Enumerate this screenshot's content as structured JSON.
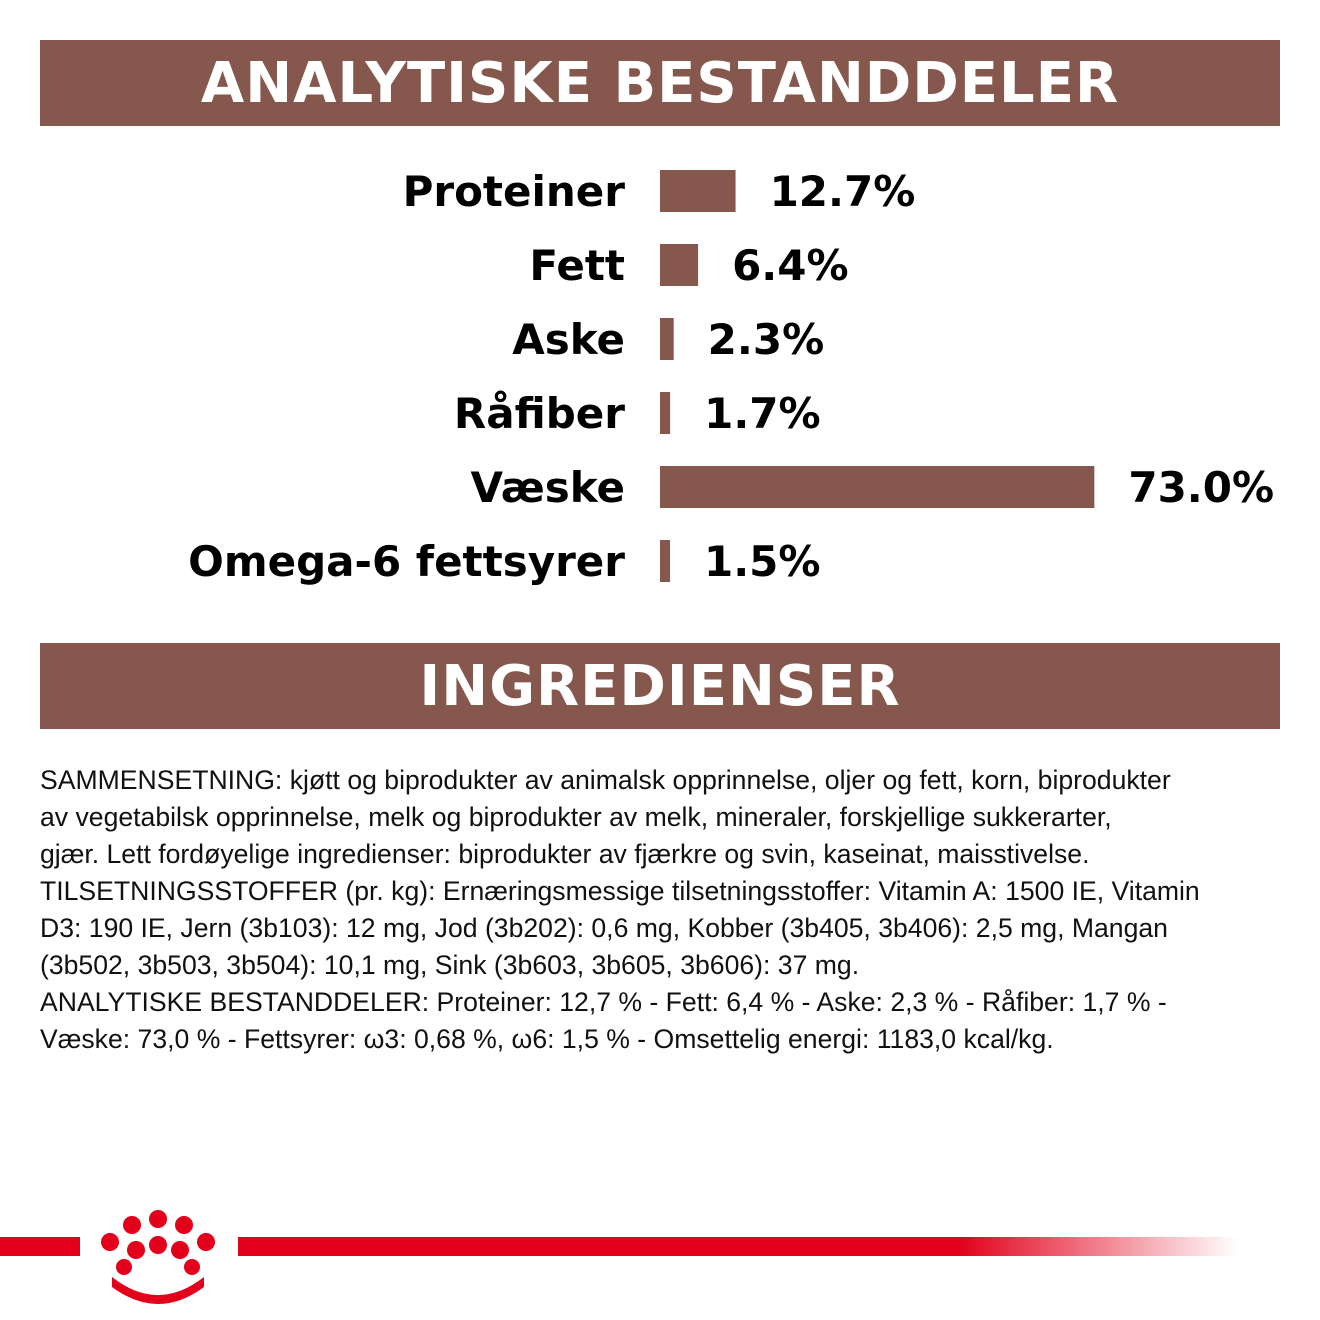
{
  "colors": {
    "accent": "#85574d",
    "brand_red": "#e2001a"
  },
  "sections": {
    "analysis_title": "ANALYTISKE BESTANDDELER",
    "ingredients_title": "INGREDIENSER"
  },
  "chart_data": {
    "type": "bar",
    "orientation": "horizontal",
    "categories": [
      "Proteiner",
      "Fett",
      "Aske",
      "Råfiber",
      "Væske",
      "Omega-6 fettsyrer"
    ],
    "values": [
      12.7,
      6.4,
      2.3,
      1.7,
      73.0,
      1.5
    ],
    "value_labels": [
      "12.7%",
      "6.4%",
      "2.3%",
      "1.7%",
      "73.0%",
      "1.5%"
    ],
    "unit": "%",
    "grid": false,
    "legend": "none"
  },
  "ingredients": {
    "lines": [
      "SAMMENSETNING: kjøtt og biprodukter av animalsk opprinnelse, oljer og fett, korn, biprodukter",
      "av vegetabilsk opprinnelse, melk og biprodukter av melk, mineraler, forskjellige sukkerarter,",
      "gjær. Lett fordøyelige ingredienser: biprodukter av fjærkre og svin, kaseinat, maisstivelse.",
      "TILSETNINGSSTOFFER (pr. kg): Ernæringsmessige tilsetningsstoffer: Vitamin A: 1500 IE, Vitamin",
      "D3: 190 IE, Jern (3b103): 12 mg, Jod (3b202): 0,6 mg, Kobber (3b405, 3b406): 2,5 mg, Mangan",
      "(3b502, 3b503, 3b504): 10,1 mg, Sink (3b603, 3b605, 3b606): 37 mg.",
      "ANALYTISKE BESTANDDELER: Proteiner: 12,7 % - Fett: 6,4 % - Aske: 2,3 % - Råfiber: 1,7 % -",
      "Væske: 73,0 % - Fettsyrer: ω3: 0,68 %, ω6: 1,5 % - Omsettelig energi: 1183,0 kcal/kg."
    ]
  },
  "footer": {
    "logo_icon": "royal-canin-crown-icon"
  }
}
